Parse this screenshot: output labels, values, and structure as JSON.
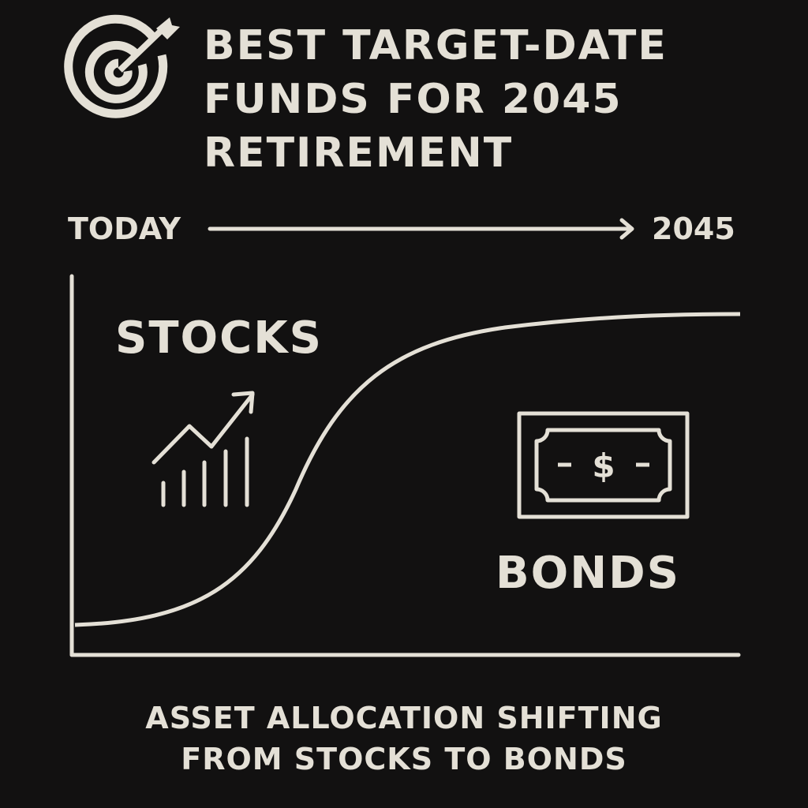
{
  "title": {
    "lines": [
      "BEST TARGET-DATE",
      "FUNDS FOR 2045",
      "RETIREMENT"
    ]
  },
  "timeline": {
    "start": "TODAY",
    "end": "2045"
  },
  "labels": {
    "stocks": "STOCKS",
    "bonds": "BONDS"
  },
  "icons": {
    "title": "target-dart-icon",
    "stocks": "bar-chart-trend-up-icon",
    "bonds": "dollar-bill-icon",
    "bill_symbol": "$"
  },
  "caption": {
    "lines": [
      "ASSET ALLOCATION SHIFTING",
      "FROM STOCKS TO BONDS"
    ]
  },
  "colors": {
    "background": "#121111",
    "foreground": "#e4e0d6"
  }
}
